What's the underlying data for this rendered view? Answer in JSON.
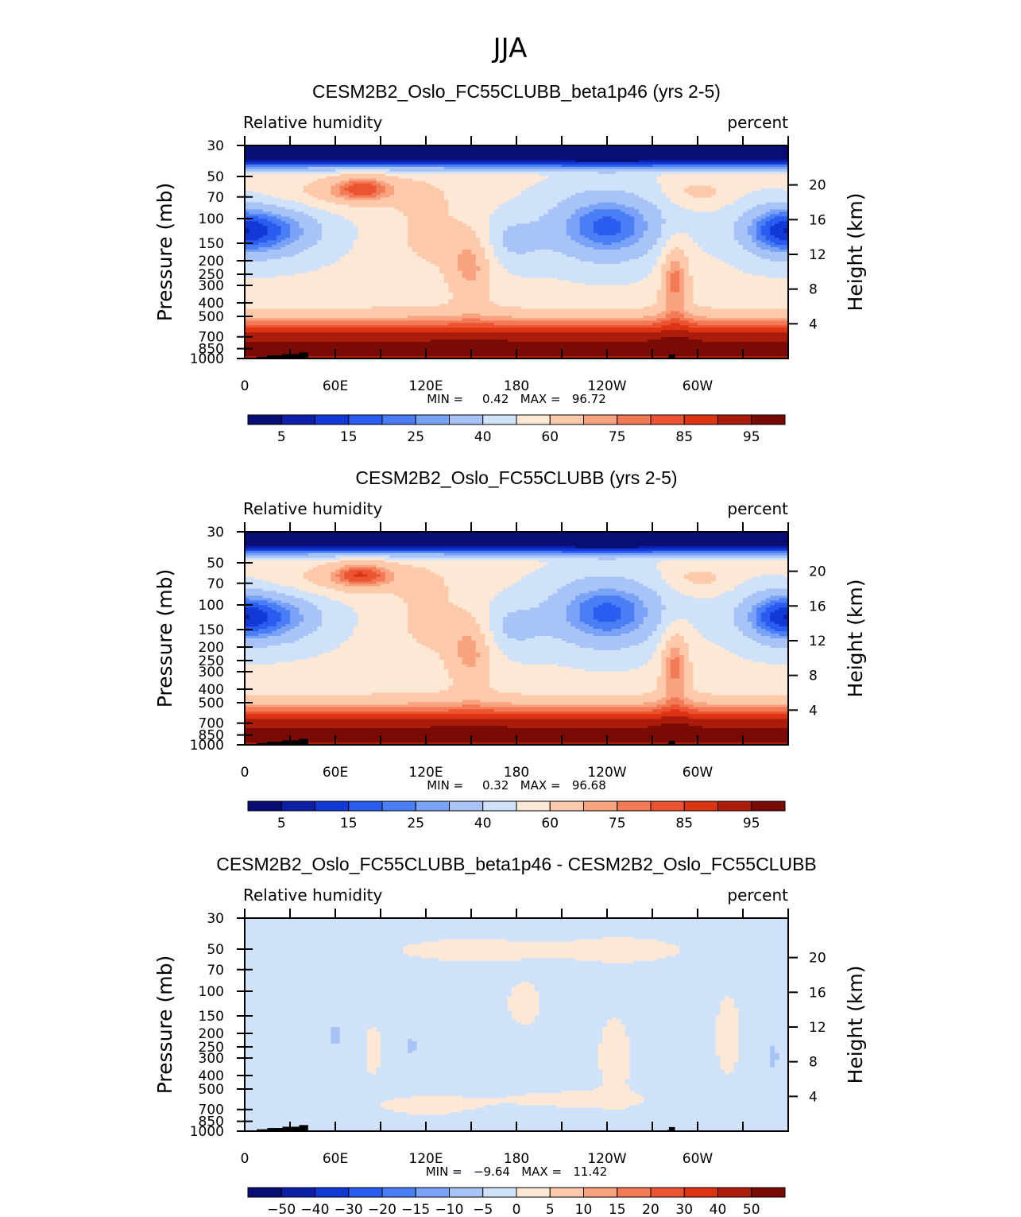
{
  "figure_title": "JJA",
  "chart_data": [
    {
      "type": "heatmap",
      "title": "CESM2B2_Oslo_FC55CLUBB_beta1p46 (yrs 2-5)",
      "left_label": "Relative humidity",
      "right_label": "percent",
      "ylabel": "Pressure (mb)",
      "ylabel_right": "Height (km)",
      "x_tick_labels": [
        "0",
        "60E",
        "120E",
        "180",
        "120W",
        "60W"
      ],
      "y_tick_labels": [
        "30",
        "50",
        "70",
        "100",
        "150",
        "200",
        "250",
        "300",
        "400",
        "500",
        "700",
        "850",
        "1000"
      ],
      "y2_tick_labels": [
        "20",
        "16",
        "12",
        "8",
        "4"
      ],
      "stats_text": "MIN =     0.42   MAX =   96.72",
      "min": 0.42,
      "max": 96.72,
      "colorbar_labels": [
        "5",
        "15",
        "25",
        "40",
        "60",
        "75",
        "85",
        "95"
      ],
      "colorbar_colors": [
        "#080e74",
        "#0c1fa8",
        "#1238d6",
        "#2a5cf0",
        "#4a7ef5",
        "#7aa2f7",
        "#a8c3f5",
        "#d0e2fa",
        "#fde8d6",
        "#fcc9ab",
        "#f9a27f",
        "#f37a57",
        "#ec5330",
        "#dc3412",
        "#ac1c0c",
        "#7a0a04"
      ],
      "x_range": [
        0,
        360
      ],
      "y_range_mb": [
        1000,
        30
      ]
    },
    {
      "type": "heatmap",
      "title": "CESM2B2_Oslo_FC55CLUBB (yrs 2-5)",
      "left_label": "Relative humidity",
      "right_label": "percent",
      "ylabel": "Pressure (mb)",
      "ylabel_right": "Height (km)",
      "x_tick_labels": [
        "0",
        "60E",
        "120E",
        "180",
        "120W",
        "60W"
      ],
      "y_tick_labels": [
        "30",
        "50",
        "70",
        "100",
        "150",
        "200",
        "250",
        "300",
        "400",
        "500",
        "700",
        "850",
        "1000"
      ],
      "y2_tick_labels": [
        "20",
        "16",
        "12",
        "8",
        "4"
      ],
      "stats_text": "MIN =     0.32   MAX =   96.68",
      "min": 0.32,
      "max": 96.68,
      "colorbar_labels": [
        "5",
        "15",
        "25",
        "40",
        "60",
        "75",
        "85",
        "95"
      ],
      "colorbar_colors": [
        "#080e74",
        "#0c1fa8",
        "#1238d6",
        "#2a5cf0",
        "#4a7ef5",
        "#7aa2f7",
        "#a8c3f5",
        "#d0e2fa",
        "#fde8d6",
        "#fcc9ab",
        "#f9a27f",
        "#f37a57",
        "#ec5330",
        "#dc3412",
        "#ac1c0c",
        "#7a0a04"
      ],
      "x_range": [
        0,
        360
      ],
      "y_range_mb": [
        1000,
        30
      ]
    },
    {
      "type": "heatmap",
      "title": "CESM2B2_Oslo_FC55CLUBB_beta1p46 - CESM2B2_Oslo_FC55CLUBB",
      "left_label": "Relative humidity",
      "right_label": "percent",
      "ylabel": "Pressure (mb)",
      "ylabel_right": "Height (km)",
      "x_tick_labels": [
        "0",
        "60E",
        "120E",
        "180",
        "120W",
        "60W"
      ],
      "y_tick_labels": [
        "30",
        "50",
        "70",
        "100",
        "150",
        "200",
        "250",
        "300",
        "400",
        "500",
        "700",
        "850",
        "1000"
      ],
      "y2_tick_labels": [
        "20",
        "16",
        "12",
        "8",
        "4"
      ],
      "stats_text": "MIN =   −9.64   MAX =   11.42",
      "min": -9.64,
      "max": 11.42,
      "colorbar_labels": [
        "−50",
        "−40",
        "−30",
        "−20",
        "−15",
        "−10",
        "−5",
        "0",
        "5",
        "10",
        "15",
        "20",
        "30",
        "40",
        "50"
      ],
      "colorbar_colors": [
        "#080e74",
        "#0c1fa8",
        "#1238d6",
        "#2a5cf0",
        "#4a7ef5",
        "#7aa2f7",
        "#a8c3f5",
        "#d0e2fa",
        "#fde8d6",
        "#fcc9ab",
        "#f9a27f",
        "#f37a57",
        "#ec5330",
        "#dc3412",
        "#ac1c0c",
        "#7a0a04"
      ],
      "x_range": [
        0,
        360
      ],
      "y_range_mb": [
        1000,
        30
      ]
    }
  ]
}
